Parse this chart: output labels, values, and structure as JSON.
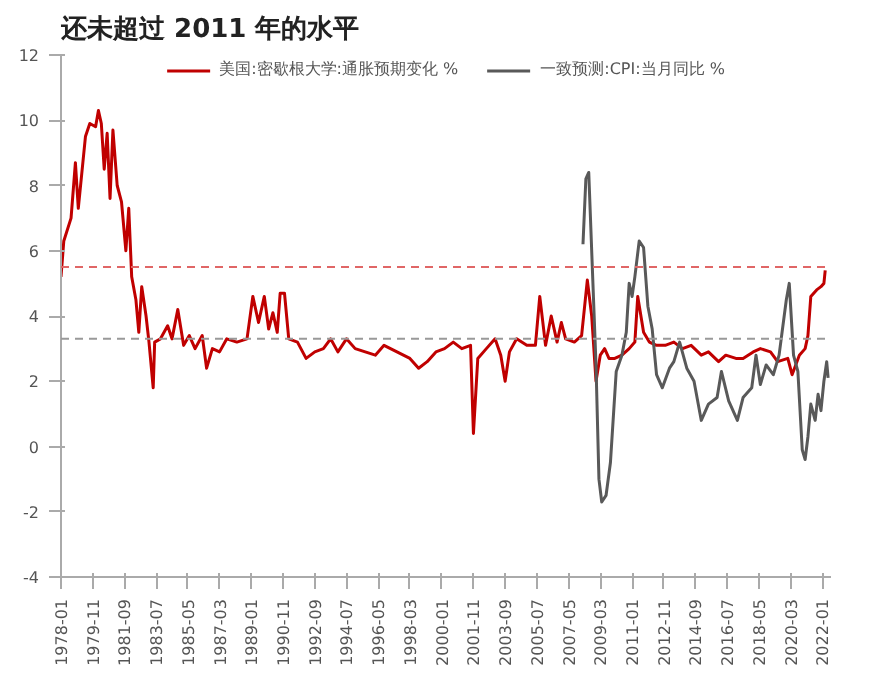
{
  "chart_data": {
    "type": "line",
    "title": "还未超过 2011 年的水平",
    "series": [
      {
        "name": "美国:密歇根大学:通胀预期变化 %",
        "color": "#c00000",
        "x": [
          "1978-01",
          "1978-03",
          "1978-08",
          "1978-11",
          "1979-01",
          "1979-06",
          "1979-09",
          "1980-01",
          "1980-03",
          "1980-05",
          "1980-07",
          "1980-09",
          "1980-11",
          "1981-01",
          "1981-04",
          "1981-07",
          "1981-10",
          "1981-12",
          "1982-02",
          "1982-05",
          "1982-07",
          "1982-09",
          "1982-12",
          "1983-02",
          "1983-05",
          "1983-06",
          "1983-10",
          "1984-03",
          "1984-06",
          "1984-10",
          "1985-02",
          "1985-06",
          "1985-10",
          "1986-03",
          "1986-06",
          "1986-10",
          "1987-03",
          "1987-08",
          "1988-03",
          "1988-10",
          "1989-02",
          "1989-06",
          "1989-10",
          "1990-01",
          "1990-04",
          "1990-07",
          "1990-09",
          "1990-12",
          "1991-03",
          "1991-09",
          "1992-03",
          "1992-09",
          "1993-03",
          "1993-08",
          "1994-01",
          "1994-07",
          "1995-01",
          "1995-08",
          "1996-03",
          "1996-09",
          "1997-06",
          "1998-03",
          "1998-09",
          "1999-03",
          "1999-09",
          "2000-03",
          "2000-09",
          "2001-03",
          "2001-09",
          "2001-11",
          "2002-02",
          "2002-08",
          "2003-02",
          "2003-06",
          "2003-09",
          "2003-12",
          "2004-05",
          "2004-12",
          "2005-06",
          "2005-09",
          "2006-01",
          "2006-05",
          "2006-09",
          "2006-12",
          "2007-03",
          "2007-09",
          "2008-02",
          "2008-06",
          "2008-09",
          "2008-12",
          "2009-03",
          "2009-06",
          "2009-09",
          "2010-01",
          "2010-06",
          "2010-11",
          "2011-03",
          "2011-05",
          "2011-09",
          "2012-01",
          "2012-06",
          "2012-12",
          "2013-06",
          "2013-12",
          "2014-06",
          "2015-01",
          "2015-06",
          "2016-01",
          "2016-06",
          "2017-01",
          "2017-06",
          "2018-01",
          "2018-06",
          "2019-01",
          "2019-06",
          "2020-01",
          "2020-04",
          "2020-09",
          "2021-01",
          "2021-03",
          "2021-05",
          "2021-09",
          "2021-12",
          "2022-02",
          "2022-03"
        ],
        "values": [
          5.2,
          6.3,
          7.0,
          8.7,
          7.3,
          9.5,
          9.9,
          9.8,
          10.3,
          9.9,
          8.5,
          9.6,
          7.6,
          9.7,
          8.0,
          7.5,
          6.0,
          7.3,
          5.2,
          4.5,
          3.5,
          4.9,
          4.0,
          3.2,
          1.8,
          3.2,
          3.3,
          3.7,
          3.3,
          4.2,
          3.1,
          3.4,
          3.0,
          3.4,
          2.4,
          3.0,
          2.9,
          3.3,
          3.2,
          3.3,
          4.6,
          3.8,
          4.6,
          3.6,
          4.1,
          3.5,
          4.7,
          4.7,
          3.3,
          3.2,
          2.7,
          2.9,
          3.0,
          3.3,
          2.9,
          3.3,
          3.0,
          2.9,
          2.8,
          3.1,
          2.9,
          2.7,
          2.4,
          2.6,
          2.9,
          3.0,
          3.2,
          3.0,
          3.1,
          0.4,
          2.7,
          3.0,
          3.3,
          2.8,
          2.0,
          2.9,
          3.3,
          3.1,
          3.1,
          4.6,
          3.1,
          4.0,
          3.2,
          3.8,
          3.3,
          3.2,
          3.4,
          5.1,
          4.0,
          2.0,
          2.8,
          3.0,
          2.7,
          2.7,
          2.8,
          3.0,
          3.2,
          4.6,
          3.5,
          3.2,
          3.1,
          3.1,
          3.2,
          3.0,
          3.1,
          2.8,
          2.9,
          2.6,
          2.8,
          2.7,
          2.7,
          2.9,
          3.0,
          2.9,
          2.6,
          2.7,
          2.2,
          2.8,
          3.0,
          3.4,
          4.6,
          4.8,
          4.9,
          5.0,
          5.4
        ]
      },
      {
        "name": "一致预测:CPI:当月同比 %",
        "color": "#595959",
        "x": [
          "2008-03",
          "2008-05",
          "2008-07",
          "2008-09",
          "2008-12",
          "2009-02",
          "2009-04",
          "2009-07",
          "2009-10",
          "2010-02",
          "2010-06",
          "2010-09",
          "2010-11",
          "2011-01",
          "2011-03",
          "2011-06",
          "2011-09",
          "2011-12",
          "2012-03",
          "2012-06",
          "2012-10",
          "2013-03",
          "2013-06",
          "2013-10",
          "2014-03",
          "2014-08",
          "2015-01",
          "2015-06",
          "2015-12",
          "2016-03",
          "2016-08",
          "2017-02",
          "2017-06",
          "2017-12",
          "2018-03",
          "2018-06",
          "2018-10",
          "2019-03",
          "2019-07",
          "2019-12",
          "2020-02",
          "2020-05",
          "2020-08",
          "2020-11",
          "2021-01",
          "2021-03",
          "2021-05",
          "2021-08",
          "2021-10",
          "2021-12",
          "2022-02",
          "2022-04",
          "2022-05"
        ],
        "values": [
          6.2,
          8.2,
          8.4,
          6.0,
          2.5,
          -1.0,
          -1.7,
          -1.5,
          -0.5,
          2.3,
          2.8,
          3.5,
          5.0,
          4.6,
          5.2,
          6.3,
          6.1,
          4.3,
          3.6,
          2.2,
          1.8,
          2.4,
          2.6,
          3.2,
          2.4,
          2.0,
          0.8,
          1.3,
          1.5,
          2.3,
          1.4,
          0.8,
          1.5,
          1.8,
          2.8,
          1.9,
          2.5,
          2.2,
          2.8,
          4.5,
          5.0,
          2.8,
          2.3,
          -0.1,
          -0.4,
          0.3,
          1.3,
          0.8,
          1.6,
          1.1,
          2.0,
          2.6,
          2.1
        ]
      }
    ],
    "xlim": [
      "1978-01",
      "2022-07"
    ],
    "xticks": [
      "1978-01",
      "1979-11",
      "1981-09",
      "1983-07",
      "1985-05",
      "1987-03",
      "1989-01",
      "1990-11",
      "1992-09",
      "1994-07",
      "1996-05",
      "1998-03",
      "2000-01",
      "2001-11",
      "2003-09",
      "2005-07",
      "2007-05",
      "2009-03",
      "2011-01",
      "2012-11",
      "2014-09",
      "2016-07",
      "2018-05",
      "2020-03",
      "2022-01"
    ],
    "ylim": [
      -4,
      12
    ],
    "yticks": [
      -4,
      -2,
      0,
      2,
      4,
      6,
      8,
      10,
      12
    ],
    "ref_lines": [
      {
        "axis": "y",
        "value": 5.5,
        "color": "#e06666",
        "line_style": "dashed"
      },
      {
        "axis": "y",
        "value": 3.3,
        "color": "#999999",
        "line_style": "dashed"
      }
    ],
    "legend": "top",
    "grid": false,
    "line_style": "solid",
    "marker": "none"
  }
}
